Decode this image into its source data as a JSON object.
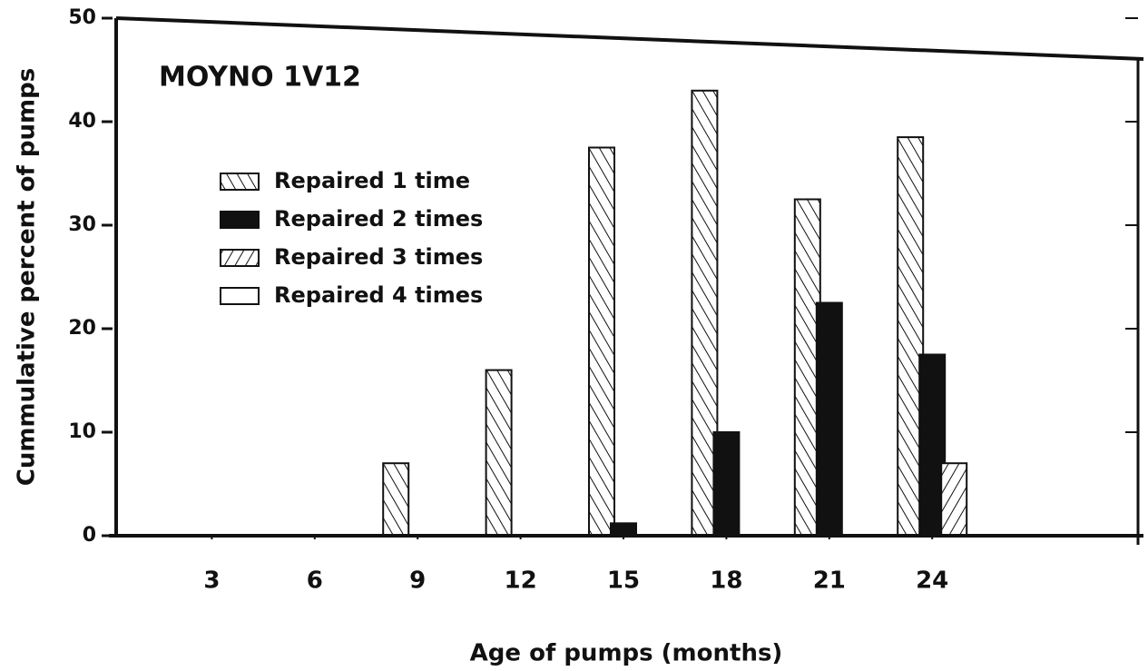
{
  "chart_data": {
    "type": "bar",
    "annotation": "MOYNO 1V12",
    "xlabel": "Age of pumps (months)",
    "ylabel": "Cummulative percent of pumps",
    "x": [
      3,
      6,
      9,
      12,
      15,
      18,
      21,
      24
    ],
    "xlim": [
      0,
      30
    ],
    "xticks": [
      3,
      6,
      9,
      12,
      15,
      18,
      21,
      24
    ],
    "ylim": [
      0,
      50
    ],
    "yticks": [
      0,
      10,
      20,
      30,
      40,
      50
    ],
    "series": [
      {
        "name": "Repaired 1 time",
        "color": "#111111",
        "hatch": "forward",
        "values": [
          0,
          0,
          7,
          16,
          37.5,
          43,
          32.5,
          38.5
        ]
      },
      {
        "name": "Repaired 2 times",
        "color": "#111111",
        "hatch": "solid",
        "values": [
          0,
          0,
          0,
          0,
          1.2,
          10,
          22.5,
          17.5
        ]
      },
      {
        "name": "Repaired 3 times",
        "color": "#111111",
        "hatch": "backward",
        "values": [
          0,
          0,
          0,
          0,
          0,
          0,
          0,
          7
        ]
      },
      {
        "name": "Repaired 4 times",
        "color": "#111111",
        "hatch": "none",
        "values": [
          0,
          0,
          0,
          0,
          0,
          0,
          0,
          0
        ]
      }
    ]
  }
}
